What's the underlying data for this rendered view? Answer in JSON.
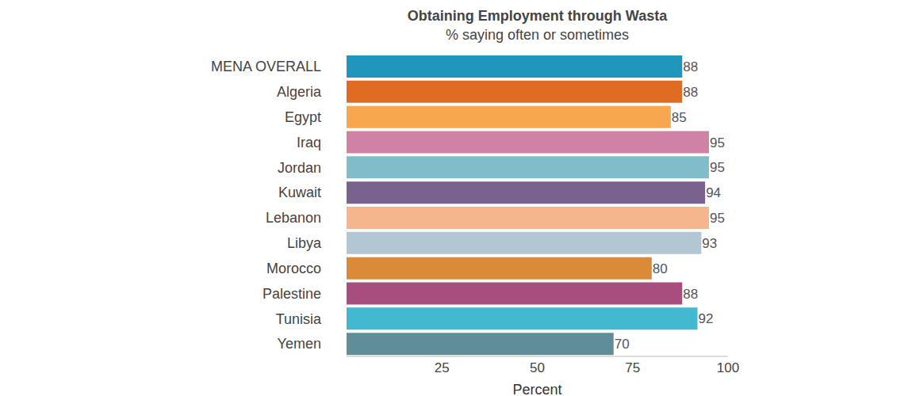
{
  "chart_data": {
    "type": "bar",
    "title": "Obtaining Employment through Wasta",
    "subtitle": "% saying often or sometimes",
    "orientation": "horizontal",
    "categories": [
      "MENA OVERALL",
      "Algeria",
      "Egypt",
      "Iraq",
      "Jordan",
      "Kuwait",
      "Lebanon",
      "Libya",
      "Morocco",
      "Palestine",
      "Tunisia",
      "Yemen"
    ],
    "values": [
      88,
      88,
      85,
      95,
      95,
      94,
      95,
      93,
      80,
      88,
      92,
      70
    ],
    "colors": [
      "#2196bd",
      "#e06c23",
      "#f7a84f",
      "#cf82a3",
      "#80bcca",
      "#7a628f",
      "#f5b58d",
      "#b3c6d3",
      "#db8a38",
      "#a84e7e",
      "#42b9cf",
      "#5f8e99"
    ],
    "x_label": "Percent",
    "xlim": [
      0,
      100
    ],
    "xticks": [
      25,
      50,
      75,
      100
    ],
    "grid": false,
    "data_labels": true
  }
}
